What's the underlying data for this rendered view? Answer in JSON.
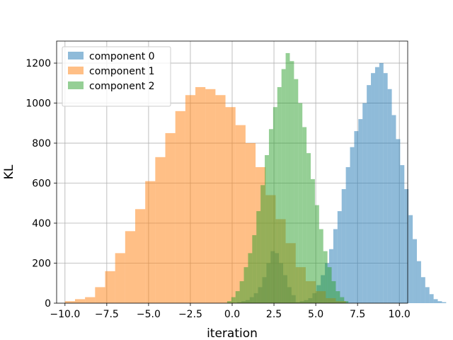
{
  "chart_data": {
    "type": "histogram",
    "xlabel": "iteration",
    "ylabel": "KL",
    "xlim": [
      -10.5,
      10.5
    ],
    "ylim": [
      0,
      1310
    ],
    "xticks": [
      -10.0,
      -7.5,
      -5.0,
      -2.5,
      0.0,
      2.5,
      5.0,
      7.5,
      10.0
    ],
    "xtick_labels": [
      "−10.0",
      "−7.5",
      "−5.0",
      "−2.5",
      "0.0",
      "2.5",
      "5.0",
      "7.5",
      "10.0"
    ],
    "yticks": [
      0,
      200,
      400,
      600,
      800,
      1000,
      1200
    ],
    "ytick_labels": [
      "0",
      "200",
      "400",
      "600",
      "800",
      "1000",
      "1200"
    ],
    "grid": true,
    "legend_position": "top-left",
    "series": [
      {
        "name": "component 0",
        "color": "#1f77b4",
        "alpha": 0.5,
        "bin_start": 0.3,
        "bin_width": 0.25,
        "counts": [
          5,
          10,
          15,
          30,
          50,
          80,
          130,
          200,
          260,
          250,
          200,
          140,
          80,
          40,
          5,
          10,
          15,
          25,
          50,
          90,
          140,
          200,
          270,
          370,
          460,
          570,
          680,
          780,
          860,
          920,
          1000,
          1090,
          1150,
          1180,
          1200,
          1150,
          1070,
          940,
          820,
          690,
          570,
          440,
          320,
          210,
          130,
          80,
          45,
          20,
          10,
          5
        ]
      },
      {
        "name": "component 1",
        "color": "#ff7f0e",
        "alpha": 0.5,
        "bin_start": -10.0,
        "bin_width": 0.6,
        "counts": [
          10,
          20,
          30,
          80,
          160,
          250,
          360,
          470,
          610,
          730,
          850,
          960,
          1040,
          1080,
          1070,
          1040,
          980,
          890,
          800,
          680,
          540,
          420,
          300,
          180,
          110,
          60,
          25,
          10
        ]
      },
      {
        "name": "component 2",
        "color": "#2ca02c",
        "alpha": 0.5,
        "bin_start": -0.3,
        "bin_width": 0.25,
        "counts": [
          10,
          30,
          60,
          110,
          180,
          250,
          340,
          460,
          590,
          740,
          870,
          980,
          1080,
          1170,
          1250,
          1210,
          1120,
          1000,
          880,
          750,
          620,
          490,
          370,
          260,
          180,
          110,
          60,
          30,
          10
        ]
      }
    ]
  }
}
